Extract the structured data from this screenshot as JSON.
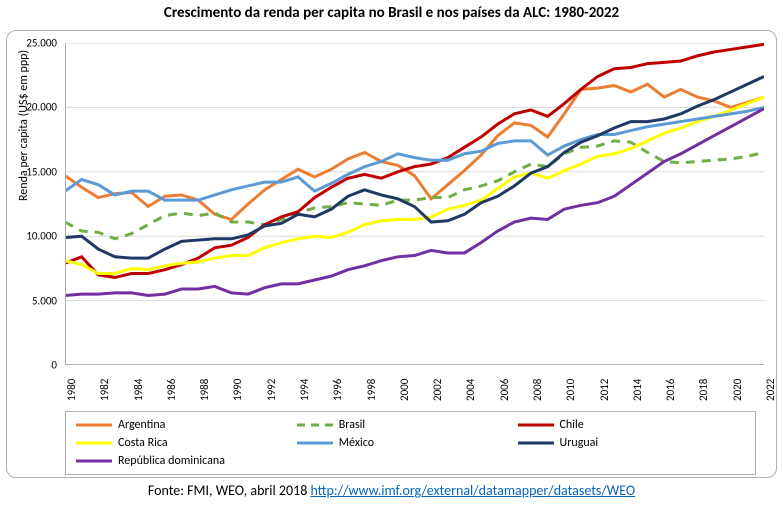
{
  "title": "Crescimento da renda per capita no Brasil e nos países da ALC: 1980-2022",
  "title_fontsize": 15,
  "ylabel": "Renda per capita (US$ em ppp)",
  "label_fontsize": 12,
  "source_prefix": "Fonte: FMI, WEO, abril 2018 ",
  "source_link_text": "http://www.imf.org/external/datamapper/datasets/WEO",
  "source_link_href": "http://www.imf.org/external/datamapper/datasets/WEO",
  "background_color": "#ffffff",
  "border_color": "#b0b0b0",
  "grid_color": "#d9d9d9",
  "ylim": [
    0,
    25000
  ],
  "yticks": [
    0,
    5000,
    10000,
    15000,
    20000,
    25000
  ],
  "ytick_labels": [
    "0",
    "5.000",
    "10.000",
    "15.000",
    "20.000",
    "25.000"
  ],
  "xlim": [
    1980,
    2022
  ],
  "xtick_step": 2,
  "xticks": [
    1980,
    1982,
    1984,
    1986,
    1988,
    1990,
    1992,
    1994,
    1996,
    1998,
    2000,
    2002,
    2004,
    2006,
    2008,
    2010,
    2012,
    2014,
    2016,
    2018,
    2020,
    2022
  ],
  "series_line_width": 3,
  "series": [
    {
      "name": "Argentina",
      "color": "#ed7d31",
      "dash": "solid",
      "x": [
        1980,
        1981,
        1982,
        1983,
        1984,
        1985,
        1986,
        1987,
        1988,
        1989,
        1990,
        1991,
        1992,
        1993,
        1994,
        1995,
        1996,
        1997,
        1998,
        1999,
        2000,
        2001,
        2002,
        2003,
        2004,
        2005,
        2006,
        2007,
        2008,
        2009,
        2010,
        2011,
        2012,
        2013,
        2014,
        2015,
        2016,
        2017,
        2018,
        2019,
        2020,
        2021,
        2022
      ],
      "y": [
        14700,
        13800,
        13000,
        13300,
        13400,
        12300,
        13100,
        13200,
        12800,
        11700,
        11300,
        12500,
        13600,
        14400,
        15200,
        14600,
        15200,
        16000,
        16500,
        15800,
        15500,
        14700,
        12900,
        14000,
        15100,
        16300,
        17800,
        18800,
        18600,
        17700,
        19500,
        21400,
        21500,
        21700,
        21200,
        21800,
        20800,
        21400,
        20800,
        20500,
        20000,
        20400,
        20800
      ]
    },
    {
      "name": "Brasil",
      "color": "#70ad47",
      "dash": "dashed",
      "x": [
        1980,
        1981,
        1982,
        1983,
        1984,
        1985,
        1986,
        1987,
        1988,
        1989,
        1990,
        1991,
        1992,
        1993,
        1994,
        1995,
        1996,
        1997,
        1998,
        1999,
        2000,
        2001,
        2002,
        2003,
        2004,
        2005,
        2006,
        2007,
        2008,
        2009,
        2010,
        2011,
        2012,
        2013,
        2014,
        2015,
        2016,
        2017,
        2018,
        2019,
        2020,
        2021,
        2022
      ],
      "y": [
        11100,
        10400,
        10300,
        9800,
        10200,
        10900,
        11600,
        11800,
        11600,
        11800,
        11100,
        11100,
        10900,
        11300,
        11800,
        12200,
        12300,
        12600,
        12500,
        12400,
        12800,
        12800,
        13000,
        13000,
        13600,
        13900,
        14300,
        15000,
        15600,
        15400,
        16400,
        16900,
        17000,
        17400,
        17300,
        16500,
        15800,
        15700,
        15800,
        15900,
        16000,
        16200,
        16500
      ]
    },
    {
      "name": "Chile",
      "color": "#c00000",
      "dash": "solid",
      "x": [
        1980,
        1981,
        1982,
        1983,
        1984,
        1985,
        1986,
        1987,
        1988,
        1989,
        1990,
        1991,
        1992,
        1993,
        1994,
        1995,
        1996,
        1997,
        1998,
        1999,
        2000,
        2001,
        2002,
        2003,
        2004,
        2005,
        2006,
        2007,
        2008,
        2009,
        2010,
        2011,
        2012,
        2013,
        2014,
        2015,
        2016,
        2017,
        2018,
        2019,
        2020,
        2021,
        2022
      ],
      "y": [
        7900,
        8400,
        7000,
        6800,
        7100,
        7100,
        7400,
        7800,
        8300,
        9100,
        9300,
        9900,
        10900,
        11500,
        11900,
        13000,
        13800,
        14500,
        14800,
        14500,
        15000,
        15400,
        15600,
        16100,
        16900,
        17700,
        18700,
        19500,
        19800,
        19300,
        20300,
        21400,
        22400,
        23000,
        23100,
        23400,
        23500,
        23600,
        24000,
        24300,
        24500,
        24700,
        24900
      ]
    },
    {
      "name": "Costa Rica",
      "color": "#ffff00",
      "dash": "solid",
      "x": [
        1980,
        1981,
        1982,
        1983,
        1984,
        1985,
        1986,
        1987,
        1988,
        1989,
        1990,
        1991,
        1992,
        1993,
        1994,
        1995,
        1996,
        1997,
        1998,
        1999,
        2000,
        2001,
        2002,
        2003,
        2004,
        2005,
        2006,
        2007,
        2008,
        2009,
        2010,
        2011,
        2012,
        2013,
        2014,
        2015,
        2016,
        2017,
        2018,
        2019,
        2020,
        2021,
        2022
      ],
      "y": [
        8100,
        7800,
        7100,
        7100,
        7500,
        7400,
        7700,
        7900,
        8000,
        8300,
        8500,
        8500,
        9100,
        9500,
        9800,
        10000,
        9900,
        10300,
        10900,
        11200,
        11300,
        11300,
        11500,
        12100,
        12400,
        12800,
        13700,
        14600,
        14900,
        14500,
        15100,
        15600,
        16200,
        16400,
        16800,
        17400,
        18000,
        18400,
        18900,
        19300,
        19800,
        20300,
        20800
      ]
    },
    {
      "name": "México",
      "color": "#5b9bd5",
      "dash": "solid",
      "x": [
        1980,
        1981,
        1982,
        1983,
        1984,
        1985,
        1986,
        1987,
        1988,
        1989,
        1990,
        1991,
        1992,
        1993,
        1994,
        1995,
        1996,
        1997,
        1998,
        1999,
        2000,
        2001,
        2002,
        2003,
        2004,
        2005,
        2006,
        2007,
        2008,
        2009,
        2010,
        2011,
        2012,
        2013,
        2014,
        2015,
        2016,
        2017,
        2018,
        2019,
        2020,
        2021,
        2022
      ],
      "y": [
        13500,
        14400,
        14000,
        13200,
        13500,
        13500,
        12800,
        12800,
        12800,
        13200,
        13600,
        13900,
        14200,
        14200,
        14600,
        13500,
        14100,
        14800,
        15400,
        15800,
        16400,
        16100,
        15900,
        15900,
        16400,
        16600,
        17200,
        17400,
        17400,
        16300,
        17000,
        17500,
        17900,
        17900,
        18200,
        18500,
        18700,
        18900,
        19100,
        19300,
        19500,
        19700,
        20000
      ]
    },
    {
      "name": "Uruguai",
      "color": "#1f3864",
      "dash": "solid",
      "x": [
        1980,
        1981,
        1982,
        1983,
        1984,
        1985,
        1986,
        1987,
        1988,
        1989,
        1990,
        1991,
        1992,
        1993,
        1994,
        1995,
        1996,
        1997,
        1998,
        1999,
        2000,
        2001,
        2002,
        2003,
        2004,
        2005,
        2006,
        2007,
        2008,
        2009,
        2010,
        2011,
        2012,
        2013,
        2014,
        2015,
        2016,
        2017,
        2018,
        2019,
        2020,
        2021,
        2022
      ],
      "y": [
        9900,
        10000,
        9000,
        8400,
        8300,
        8300,
        9000,
        9600,
        9700,
        9800,
        9800,
        10100,
        10800,
        11000,
        11700,
        11500,
        12100,
        13100,
        13600,
        13200,
        12900,
        12300,
        11100,
        11200,
        11700,
        12600,
        13100,
        13900,
        14900,
        15400,
        16500,
        17300,
        17800,
        18400,
        18900,
        18900,
        19100,
        19500,
        20100,
        20600,
        21200,
        21800,
        22400
      ]
    },
    {
      "name": "República dominicana",
      "color": "#7030a0",
      "dash": "solid",
      "x": [
        1980,
        1981,
        1982,
        1983,
        1984,
        1985,
        1986,
        1987,
        1988,
        1989,
        1990,
        1991,
        1992,
        1993,
        1994,
        1995,
        1996,
        1997,
        1998,
        1999,
        2000,
        2001,
        2002,
        2003,
        2004,
        2005,
        2006,
        2007,
        2008,
        2009,
        2010,
        2011,
        2012,
        2013,
        2014,
        2015,
        2016,
        2017,
        2018,
        2019,
        2020,
        2021,
        2022
      ],
      "y": [
        5400,
        5500,
        5500,
        5600,
        5600,
        5400,
        5500,
        5900,
        5900,
        6100,
        5600,
        5500,
        6000,
        6300,
        6300,
        6600,
        6900,
        7400,
        7700,
        8100,
        8400,
        8500,
        8900,
        8700,
        8700,
        9500,
        10400,
        11100,
        11400,
        11300,
        12100,
        12400,
        12600,
        13100,
        14000,
        14900,
        15800,
        16400,
        17100,
        17800,
        18500,
        19200,
        19900
      ]
    }
  ],
  "legend_border_color": "#b0b0b0",
  "legend_fontsize": 12
}
